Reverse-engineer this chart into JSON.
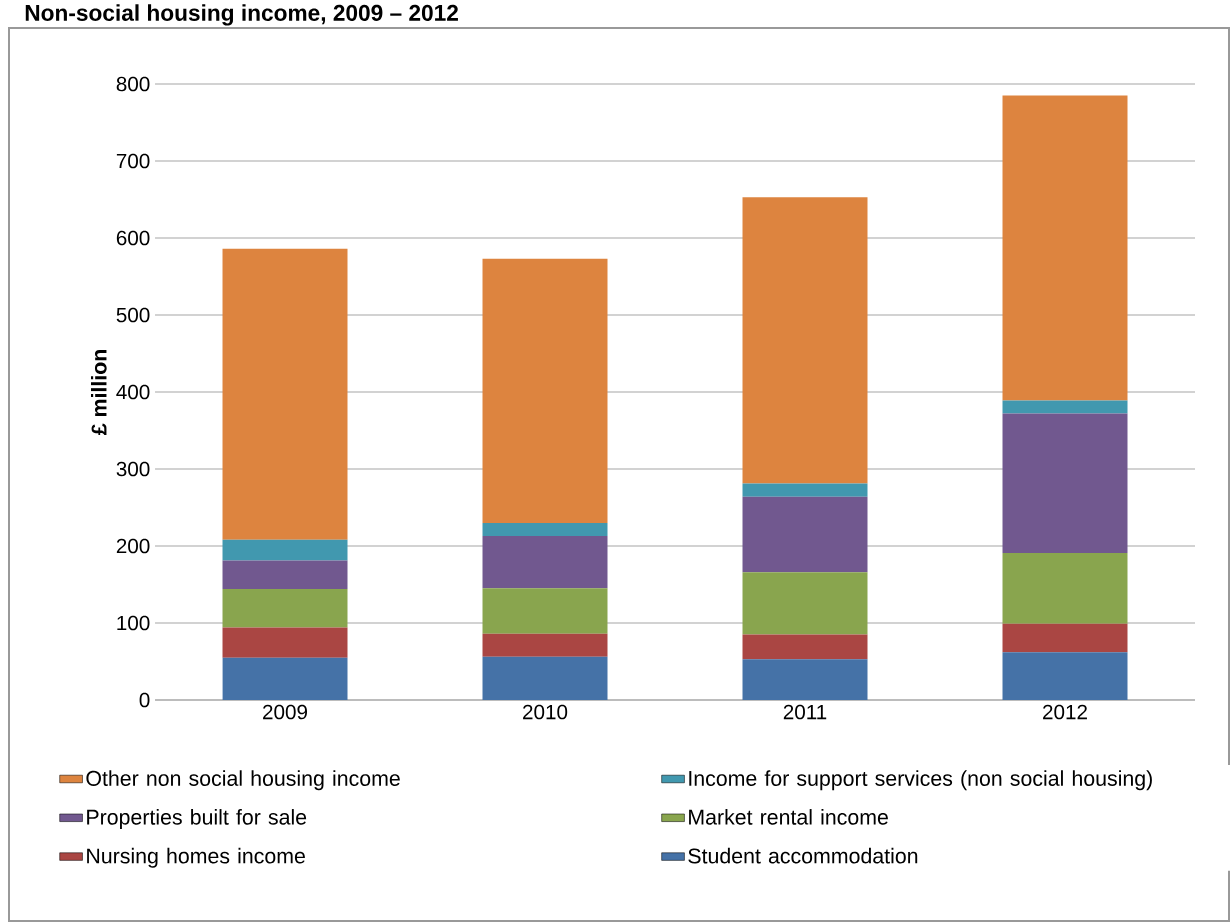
{
  "chart_data": {
    "type": "bar",
    "title": "Non-social housing income, 2009 – 2012",
    "ylabel": "£ million",
    "stacked": true,
    "categories": [
      "2009",
      "2010",
      "2011",
      "2012"
    ],
    "series": [
      {
        "name": "Student accommodation",
        "color": "#4572a7",
        "values": [
          55,
          56,
          53,
          62
        ]
      },
      {
        "name": "Nursing homes income",
        "color": "#aa4643",
        "values": [
          39,
          30,
          32,
          37
        ]
      },
      {
        "name": "Market rental income",
        "color": "#89a54e",
        "values": [
          50,
          59,
          81,
          92
        ]
      },
      {
        "name": "Properties built for sale",
        "color": "#71588f",
        "values": [
          37,
          68,
          98,
          181
        ]
      },
      {
        "name": "Income for support services (non social housing)",
        "color": "#4198af",
        "values": [
          27,
          17,
          17,
          17
        ]
      },
      {
        "name": "Other non social housing income",
        "color": "#dd843f",
        "values": [
          378,
          343,
          372,
          396
        ]
      }
    ],
    "ylim": [
      0,
      800
    ],
    "yticks": [
      0,
      100,
      200,
      300,
      400,
      500,
      600,
      700,
      800
    ],
    "grid": "y",
    "legend": "bottom"
  }
}
